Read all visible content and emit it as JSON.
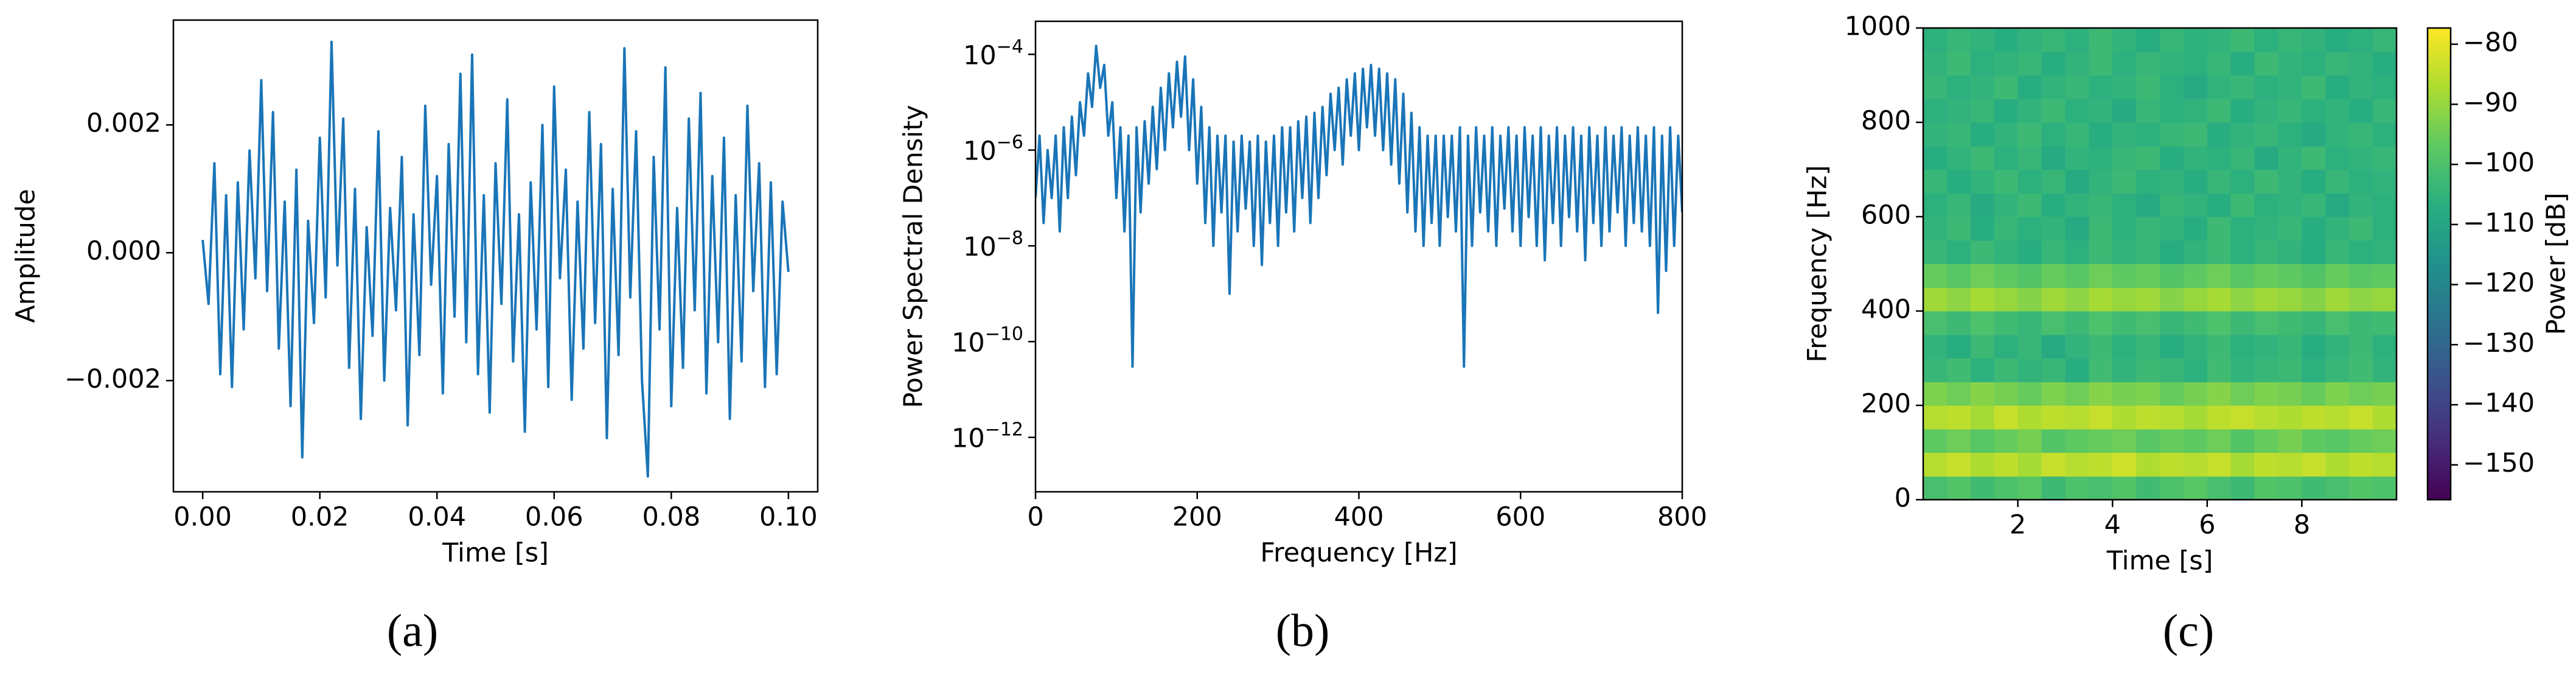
{
  "chart_data": [
    {
      "type": "line",
      "caption": "(a)",
      "xlabel": "Time [s]",
      "ylabel": "Amplitude",
      "color": "#1a75b8",
      "xlim": [
        -0.005,
        0.105
      ],
      "ylim": [
        -0.00374,
        0.00364
      ],
      "xticks": [
        {
          "value": 0,
          "label": "0.00"
        },
        {
          "value": 0.02,
          "label": "0.02"
        },
        {
          "value": 0.04,
          "label": "0.04"
        },
        {
          "value": 0.06,
          "label": "0.06"
        },
        {
          "value": 0.08,
          "label": "0.08"
        },
        {
          "value": 0.1,
          "label": "0.10"
        }
      ],
      "yticks": [
        {
          "value": -0.002,
          "label": "−0.002"
        },
        {
          "value": 0,
          "label": "0.000"
        },
        {
          "value": 0.002,
          "label": "0.002"
        }
      ],
      "x": [
        0,
        0.001,
        0.002,
        0.003,
        0.004,
        0.005,
        0.006,
        0.007,
        0.008,
        0.009,
        0.01,
        0.011,
        0.012,
        0.013,
        0.014,
        0.015,
        0.016,
        0.017,
        0.018,
        0.019,
        0.02,
        0.021,
        0.022,
        0.023,
        0.024,
        0.025,
        0.026,
        0.027,
        0.028,
        0.029,
        0.03,
        0.031,
        0.032,
        0.033,
        0.034,
        0.035,
        0.036,
        0.037,
        0.038,
        0.039,
        0.04,
        0.041,
        0.042,
        0.043,
        0.044,
        0.045,
        0.046,
        0.047,
        0.048,
        0.049,
        0.05,
        0.051,
        0.052,
        0.053,
        0.054,
        0.055,
        0.056,
        0.057,
        0.058,
        0.059,
        0.06,
        0.061,
        0.062,
        0.063,
        0.064,
        0.065,
        0.066,
        0.067,
        0.068,
        0.069,
        0.07,
        0.071,
        0.072,
        0.073,
        0.074,
        0.075,
        0.076,
        0.077,
        0.078,
        0.079,
        0.08,
        0.081,
        0.082,
        0.083,
        0.084,
        0.085,
        0.086,
        0.087,
        0.088,
        0.089,
        0.09,
        0.091,
        0.092,
        0.093,
        0.094,
        0.095,
        0.096,
        0.097,
        0.098,
        0.099,
        0.1
      ],
      "values": [
        0.0002,
        -0.0008,
        0.0014,
        -0.0019,
        0.0009,
        -0.0021,
        0.0011,
        -0.0012,
        0.0016,
        -0.0004,
        0.0027,
        -0.0006,
        0.0022,
        -0.0015,
        0.0008,
        -0.0024,
        0.0013,
        -0.0032,
        0.0005,
        -0.0011,
        0.0018,
        -0.0007,
        0.0033,
        -0.0002,
        0.0021,
        -0.0018,
        0.001,
        -0.0026,
        0.0004,
        -0.0013,
        0.0019,
        -0.002,
        0.0007,
        -0.0009,
        0.0015,
        -0.0027,
        0.0006,
        -0.0016,
        0.0023,
        -0.0005,
        0.0012,
        -0.0022,
        0.0017,
        -0.001,
        0.0028,
        -0.0014,
        0.0031,
        -0.0019,
        0.0009,
        -0.0025,
        0.0014,
        -0.0008,
        0.0024,
        -0.0017,
        0.0006,
        -0.0028,
        0.0011,
        -0.0012,
        0.002,
        -0.0021,
        0.0026,
        -0.0004,
        0.0013,
        -0.0023,
        0.0008,
        -0.0015,
        0.0022,
        -0.0011,
        0.0017,
        -0.0029,
        0.001,
        -0.0016,
        0.0032,
        -0.0007,
        0.0019,
        -0.002,
        -0.0035,
        0.0015,
        -0.0012,
        0.0029,
        -0.0024,
        0.0007,
        -0.0018,
        0.0021,
        -0.0009,
        0.0025,
        -0.0022,
        0.0012,
        -0.0014,
        0.0018,
        -0.0026,
        0.0009,
        -0.0017,
        0.0023,
        -0.0006,
        0.0014,
        -0.0021,
        0.0011,
        -0.0019,
        0.0008,
        -0.0003
      ]
    },
    {
      "type": "line",
      "caption": "(b)",
      "xlabel": "Frequency [Hz]",
      "ylabel": "Power Spectral Density",
      "color": "#1a75b8",
      "yscale": "log",
      "xlim": [
        0,
        800
      ],
      "ylim": [
        7.3e-14,
        0.00049
      ],
      "xticks": [
        0,
        200,
        400,
        600,
        800
      ],
      "yticks": [
        {
          "value": 1e-12,
          "label": "10−12"
        },
        {
          "value": 1e-10,
          "label": "10−10"
        },
        {
          "value": 1e-08,
          "label": "10−8"
        },
        {
          "value": 1e-06,
          "label": "10−6"
        },
        {
          "value": 0.0001,
          "label": "10−4"
        }
      ],
      "x": [
        0,
        5,
        10,
        15,
        20,
        25,
        30,
        35,
        40,
        45,
        50,
        55,
        60,
        65,
        70,
        75,
        80,
        85,
        90,
        95,
        100,
        105,
        110,
        115,
        120,
        125,
        130,
        135,
        140,
        145,
        150,
        155,
        160,
        165,
        170,
        175,
        180,
        185,
        190,
        195,
        200,
        205,
        210,
        215,
        220,
        225,
        230,
        235,
        240,
        245,
        250,
        255,
        260,
        265,
        270,
        275,
        280,
        285,
        290,
        295,
        300,
        305,
        310,
        315,
        320,
        325,
        330,
        335,
        340,
        345,
        350,
        355,
        360,
        365,
        370,
        375,
        380,
        385,
        390,
        395,
        400,
        405,
        410,
        415,
        420,
        425,
        430,
        435,
        440,
        445,
        450,
        455,
        460,
        465,
        470,
        475,
        480,
        485,
        490,
        495,
        500,
        505,
        510,
        515,
        520,
        525,
        530,
        535,
        540,
        545,
        550,
        555,
        560,
        565,
        570,
        575,
        580,
        585,
        590,
        595,
        600,
        605,
        610,
        615,
        620,
        625,
        630,
        635,
        640,
        645,
        650,
        655,
        660,
        665,
        670,
        675,
        680,
        685,
        690,
        695,
        700,
        705,
        710,
        715,
        720,
        725,
        730,
        735,
        740,
        745,
        750,
        755,
        760,
        765,
        770,
        775,
        780,
        785,
        790,
        795,
        800
      ],
      "values": [
        1e-07,
        2e-06,
        3e-08,
        1e-06,
        1e-07,
        2e-06,
        2e-08,
        3e-06,
        1e-07,
        5e-06,
        3e-07,
        1e-05,
        2e-06,
        4e-05,
        8e-06,
        0.00015,
        2e-05,
        6e-05,
        2e-06,
        1e-05,
        1e-07,
        3e-06,
        2e-08,
        2e-06,
        3e-11,
        3e-06,
        5e-08,
        4e-06,
        2e-07,
        8e-06,
        4e-07,
        2e-05,
        1e-06,
        4e-05,
        3e-06,
        7e-05,
        5e-06,
        9e-05,
        1e-06,
        3e-05,
        2e-07,
        8e-06,
        3e-08,
        3e-06,
        1e-08,
        2e-06,
        5e-08,
        2e-06,
        1e-09,
        1.5e-06,
        2e-08,
        2e-06,
        6e-08,
        1.5e-06,
        1e-08,
        2e-06,
        4e-09,
        1.5e-06,
        3e-08,
        2e-06,
        1e-08,
        3e-06,
        5e-08,
        3e-06,
        2e-08,
        4e-06,
        1e-07,
        5e-06,
        3e-08,
        6e-06,
        1e-07,
        8e-06,
        3e-07,
        1.5e-05,
        1e-06,
        2e-05,
        5e-07,
        3e-05,
        2e-06,
        4e-05,
        1e-06,
        5e-05,
        3e-06,
        6e-05,
        2e-06,
        5e-05,
        1e-06,
        4e-05,
        5e-07,
        3e-05,
        2e-07,
        1.5e-05,
        5e-08,
        6e-06,
        2e-08,
        3e-06,
        1e-08,
        2e-06,
        3e-08,
        2e-06,
        1e-08,
        2e-06,
        4e-08,
        2e-06,
        2e-08,
        3e-06,
        3e-11,
        2e-06,
        1e-08,
        3e-06,
        5e-08,
        2e-06,
        2e-08,
        3e-06,
        1e-08,
        2e-06,
        6e-08,
        3e-06,
        2e-08,
        2e-06,
        1e-08,
        3e-06,
        4e-08,
        2e-06,
        1e-08,
        3e-06,
        5e-09,
        2e-06,
        3e-08,
        3e-06,
        1e-08,
        2e-06,
        4e-08,
        3e-06,
        2e-08,
        2e-06,
        5e-09,
        3e-06,
        3e-08,
        2e-06,
        1e-08,
        3e-06,
        2e-08,
        2e-06,
        5e-08,
        3e-06,
        1e-08,
        2e-06,
        3e-08,
        3e-06,
        2e-08,
        2e-06,
        1e-08,
        3e-06,
        4e-10,
        2e-06,
        3e-09,
        3e-06,
        1e-08,
        2e-06,
        5e-08
      ]
    },
    {
      "type": "heatmap",
      "caption": "(c)",
      "xlabel": "Time [s]",
      "ylabel": "Frequency [Hz]",
      "colorbar_label": "Power [dB]",
      "colormap": "viridis",
      "xlim": [
        0,
        10
      ],
      "ylim": [
        0,
        1000
      ],
      "clim": [
        -155.8,
        -77.3
      ],
      "xticks": [
        2,
        4,
        6,
        8
      ],
      "yticks": [
        0,
        200,
        400,
        600,
        800,
        1000
      ],
      "cticks": [
        {
          "value": -150,
          "label": "−150"
        },
        {
          "value": -140,
          "label": "−140"
        },
        {
          "value": -130,
          "label": "−130"
        },
        {
          "value": -120,
          "label": "−120"
        },
        {
          "value": -110,
          "label": "−110"
        },
        {
          "value": -100,
          "label": "−100"
        },
        {
          "value": -90,
          "label": "−90"
        },
        {
          "value": -80,
          "label": "−80"
        }
      ],
      "z": [
        [
          -101,
          -99,
          -102,
          -100,
          -98,
          -103,
          -100,
          -101,
          -99,
          -102,
          -100,
          -98,
          -101,
          -103,
          -99,
          -100,
          -102,
          -101,
          -99,
          -100
        ],
        [
          -86,
          -84,
          -87,
          -85,
          -88,
          -84,
          -86,
          -85,
          -83,
          -87,
          -85,
          -86,
          -84,
          -88,
          -85,
          -86,
          -84,
          -87,
          -85,
          -86
        ],
        [
          -97,
          -95,
          -98,
          -96,
          -94,
          -99,
          -97,
          -96,
          -95,
          -98,
          -96,
          -97,
          -95,
          -99,
          -96,
          -94,
          -97,
          -98,
          -96,
          -95
        ],
        [
          -86,
          -85,
          -88,
          -84,
          -87,
          -85,
          -86,
          -84,
          -87,
          -85,
          -86,
          -88,
          -85,
          -84,
          -86,
          -87,
          -85,
          -86,
          -84,
          -87
        ],
        [
          -93,
          -95,
          -92,
          -94,
          -96,
          -93,
          -95,
          -92,
          -94,
          -93,
          -96,
          -94,
          -92,
          -95,
          -93,
          -94,
          -96,
          -93,
          -95,
          -94
        ],
        [
          -104,
          -102,
          -106,
          -103,
          -105,
          -104,
          -107,
          -102,
          -105,
          -103,
          -104,
          -106,
          -102,
          -105,
          -104,
          -103,
          -106,
          -104,
          -102,
          -105
        ],
        [
          -105,
          -107,
          -103,
          -106,
          -104,
          -108,
          -105,
          -103,
          -106,
          -104,
          -107,
          -105,
          -103,
          -106,
          -105,
          -104,
          -107,
          -105,
          -103,
          -106
        ],
        [
          -101,
          -103,
          -100,
          -102,
          -104,
          -101,
          -103,
          -100,
          -102,
          -101,
          -104,
          -102,
          -100,
          -103,
          -101,
          -102,
          -104,
          -101,
          -103,
          -102
        ],
        [
          -89,
          -91,
          -88,
          -90,
          -92,
          -89,
          -91,
          -88,
          -90,
          -89,
          -92,
          -90,
          -88,
          -91,
          -89,
          -90,
          -92,
          -89,
          -91,
          -90
        ],
        [
          -96,
          -98,
          -95,
          -97,
          -99,
          -96,
          -98,
          -95,
          -97,
          -96,
          -99,
          -97,
          -95,
          -98,
          -96,
          -97,
          -99,
          -96,
          -98,
          -97
        ],
        [
          -104,
          -106,
          -103,
          -105,
          -107,
          -104,
          -106,
          -103,
          -105,
          -104,
          -107,
          -105,
          -103,
          -106,
          -104,
          -105,
          -107,
          -104,
          -106,
          -105
        ],
        [
          -105,
          -103,
          -107,
          -104,
          -106,
          -105,
          -108,
          -103,
          -106,
          -104,
          -105,
          -107,
          -103,
          -106,
          -105,
          -104,
          -107,
          -105,
          -103,
          -106
        ],
        [
          -106,
          -104,
          -108,
          -105,
          -103,
          -107,
          -105,
          -104,
          -106,
          -108,
          -104,
          -105,
          -107,
          -103,
          -106,
          -105,
          -104,
          -108,
          -105,
          -106
        ],
        [
          -104,
          -107,
          -105,
          -103,
          -106,
          -104,
          -108,
          -105,
          -103,
          -106,
          -105,
          -107,
          -104,
          -106,
          -103,
          -105,
          -107,
          -104,
          -106,
          -105
        ],
        [
          -107,
          -105,
          -103,
          -106,
          -104,
          -108,
          -105,
          -106,
          -104,
          -103,
          -107,
          -105,
          -106,
          -104,
          -108,
          -105,
          -103,
          -106,
          -105,
          -104
        ],
        [
          -105,
          -104,
          -107,
          -105,
          -103,
          -106,
          -104,
          -107,
          -105,
          -106,
          -104,
          -103,
          -107,
          -105,
          -104,
          -106,
          -108,
          -105,
          -104,
          -106
        ],
        [
          -106,
          -105,
          -104,
          -107,
          -105,
          -103,
          -106,
          -105,
          -108,
          -104,
          -106,
          -105,
          -103,
          -107,
          -105,
          -104,
          -106,
          -105,
          -107,
          -104
        ],
        [
          -104,
          -106,
          -105,
          -103,
          -107,
          -105,
          -104,
          -106,
          -105,
          -103,
          -106,
          -108,
          -105,
          -104,
          -106,
          -105,
          -103,
          -107,
          -105,
          -106
        ],
        [
          -105,
          -103,
          -106,
          -105,
          -104,
          -107,
          -105,
          -103,
          -106,
          -104,
          -105,
          -106,
          -104,
          -107,
          -103,
          -105,
          -106,
          -104,
          -105,
          -107
        ],
        [
          -106,
          -104,
          -105,
          -107,
          -105,
          -104,
          -106,
          -103,
          -105,
          -107,
          -104,
          -106,
          -105,
          -103,
          -106,
          -104,
          -105,
          -107,
          -106,
          -104
        ]
      ]
    }
  ]
}
